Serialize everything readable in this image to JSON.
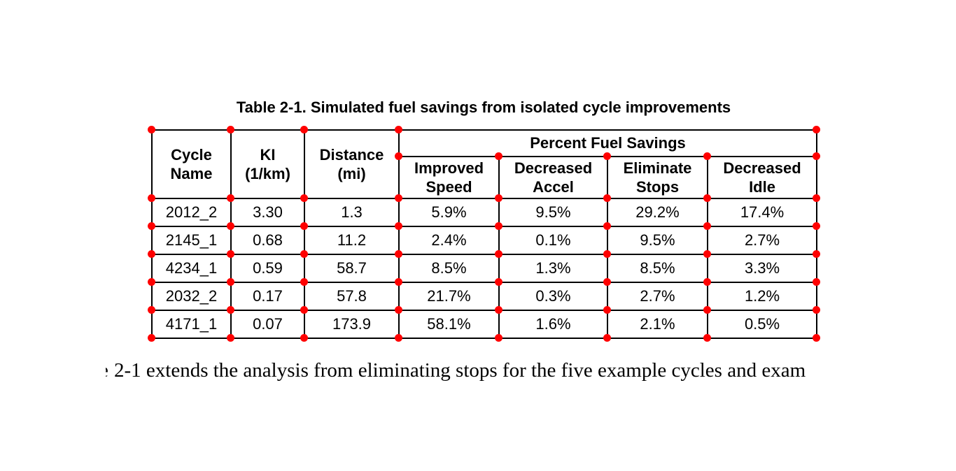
{
  "title": "Table 2-1. Simulated fuel savings from isolated cycle improvements",
  "table": {
    "columns": [
      "Cycle\nName",
      "KI\n(1/km)",
      "Distance\n(mi)"
    ],
    "group_header": "Percent Fuel Savings",
    "sub_columns": [
      "Improved\nSpeed",
      "Decreased\nAccel",
      "Eliminate\nStops",
      "Decreased\nIdle"
    ],
    "rows": [
      [
        "2012_2",
        "3.30",
        "1.3",
        "5.9%",
        "9.5%",
        "29.2%",
        "17.4%"
      ],
      [
        "2145_1",
        "0.68",
        "11.2",
        "2.4%",
        "0.1%",
        "9.5%",
        "2.7%"
      ],
      [
        "4234_1",
        "0.59",
        "58.7",
        "8.5%",
        "1.3%",
        "8.5%",
        "3.3%"
      ],
      [
        "2032_2",
        "0.17",
        "57.8",
        "21.7%",
        "0.3%",
        "2.7%",
        "1.2%"
      ],
      [
        "4171_1",
        "0.07",
        "173.9",
        "58.1%",
        "1.6%",
        "2.1%",
        "0.5%"
      ]
    ]
  },
  "paragraph": {
    "leading_fragment": "e",
    "text": "2-1 extends the analysis from eliminating stops for the five example cycles and exam"
  },
  "colors": {
    "marker_dot": "#ff0000",
    "grid_line": "#000000",
    "text": "#000000",
    "background": "#ffffff"
  }
}
